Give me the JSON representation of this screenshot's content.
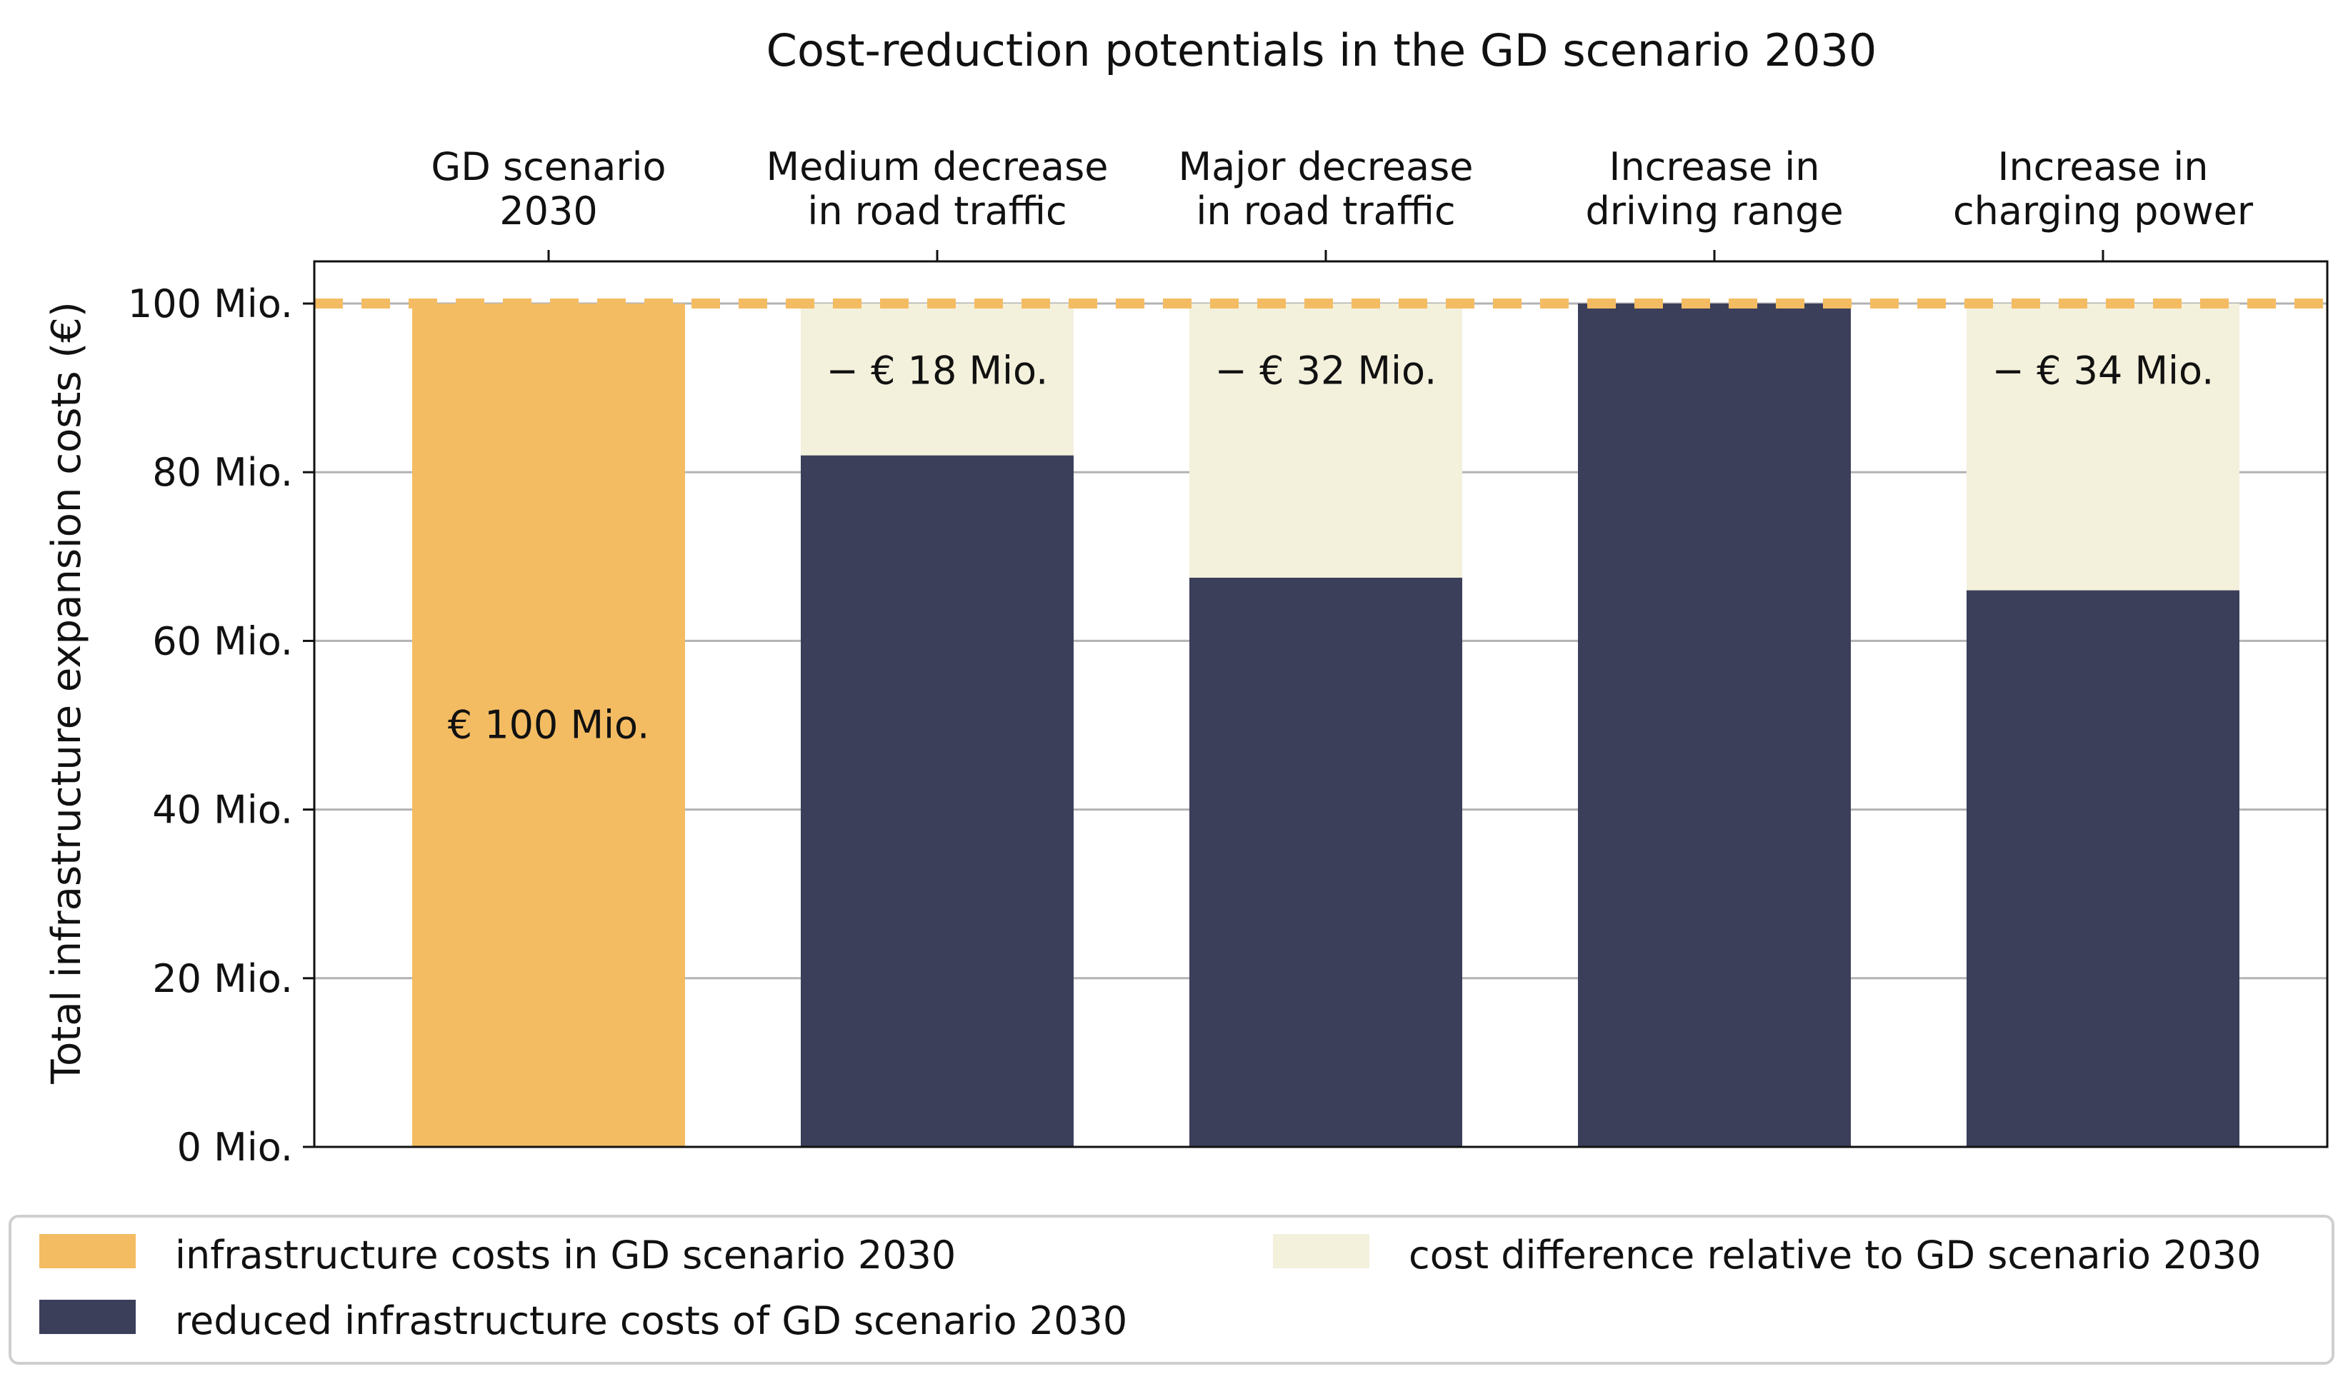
{
  "chart_data": {
    "type": "bar",
    "stacked": true,
    "title": "Cost-reduction potentials in the GD scenario 2030",
    "xlabel": "",
    "ylabel": "Total infrastructure expansion costs (€)",
    "ylim": [
      0,
      105
    ],
    "yticks": [
      0,
      20,
      40,
      60,
      80,
      100
    ],
    "ytick_labels": [
      "0 Mio.",
      "20 Mio.",
      "40 Mio.",
      "60 Mio.",
      "80 Mio.",
      "100 Mio."
    ],
    "grid": true,
    "reference_line": {
      "value": 100,
      "style": "dashed",
      "color": "#f4bc62"
    },
    "categories": [
      [
        "GD scenario",
        "2030"
      ],
      [
        "Medium decrease",
        "in road traffic"
      ],
      [
        "Major decrease",
        "in road traffic"
      ],
      [
        "Increase in",
        "driving range"
      ],
      [
        "Increase in",
        "charging power"
      ]
    ],
    "series": [
      {
        "name": "infrastructure costs in GD scenario 2030",
        "color": "#f4bc62",
        "values": [
          100,
          0,
          0,
          0,
          0
        ]
      },
      {
        "name": "reduced infrastructure costs of GD scenario 2030",
        "color": "#3c3f5a",
        "values": [
          0,
          82,
          67.5,
          100,
          66
        ]
      },
      {
        "name": "cost difference relative to GD scenario 2030",
        "color": "#f3f0dc",
        "values": [
          0,
          18,
          32.5,
          0,
          34
        ]
      }
    ],
    "annotations": [
      "€ 100 Mio.",
      "− € 18 Mio.",
      "− € 32 Mio.",
      "",
      "− € 34 Mio."
    ],
    "legend_position": "bottom"
  }
}
